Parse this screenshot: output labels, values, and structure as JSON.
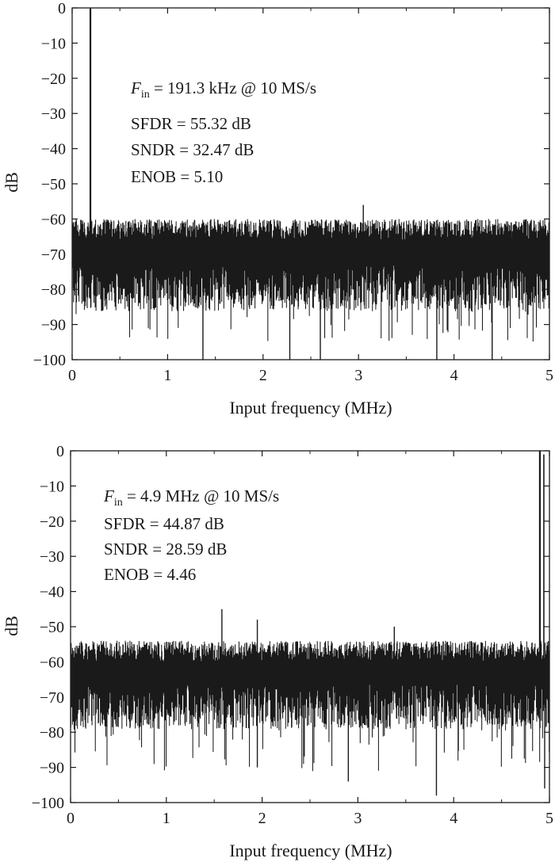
{
  "chart_data": [
    {
      "type": "line",
      "xlabel": "Input frequency (MHz)",
      "ylabel": "dB",
      "xlim": [
        0,
        5
      ],
      "ylim": [
        -100,
        0
      ],
      "xticks": [
        "0",
        "1",
        "2",
        "3",
        "4",
        "5"
      ],
      "yticks": [
        "0",
        "-10",
        "-20",
        "-30",
        "-40",
        "-50",
        "-60",
        "-70",
        "-80",
        "-90",
        "-100"
      ],
      "grid": false,
      "annotations": {
        "fin_symbol": "F",
        "fin_subscript": "in",
        "fin_rest": " = 191.3 kHz @ 10 MS/s",
        "sfdr": "SFDR = 55.32 dB",
        "sndr": "SNDR = 32.47 dB",
        "enob": "ENOB = 5.10"
      },
      "signal_peak": {
        "x": 0.1913,
        "y": 0
      },
      "noise_floor": {
        "mean": -71,
        "typical_range": [
          -83,
          -60
        ],
        "deepest": -100
      },
      "spurs": [
        {
          "x": 3.05,
          "y": -56
        },
        {
          "x": 1.7,
          "y": -61
        },
        {
          "x": 4.6,
          "y": -61
        }
      ],
      "deep_nulls": [
        {
          "x": 1.37,
          "y": -100
        },
        {
          "x": 2.28,
          "y": -100
        },
        {
          "x": 2.6,
          "y": -100
        },
        {
          "x": 3.82,
          "y": -100
        },
        {
          "x": 4.4,
          "y": -100
        }
      ]
    },
    {
      "type": "line",
      "xlabel": "Input frequency (MHz)",
      "ylabel": "dB",
      "xlim": [
        0,
        5
      ],
      "ylim": [
        -100,
        0
      ],
      "xticks": [
        "0",
        "1",
        "2",
        "3",
        "4",
        "5"
      ],
      "yticks": [
        "0",
        "-10",
        "-20",
        "-30",
        "-40",
        "-50",
        "-60",
        "-70",
        "-80",
        "-90",
        "-100"
      ],
      "grid": false,
      "annotations": {
        "fin_symbol": "F",
        "fin_subscript": "in",
        "fin_rest": " = 4.9 MHz @ 10 MS/s",
        "sfdr": "SFDR = 44.87 dB",
        "sndr": "SNDR = 28.59 dB",
        "enob": "ENOB = 4.46"
      },
      "signal_peak": {
        "x": 4.9,
        "y": 0
      },
      "noise_floor": {
        "mean": -64,
        "typical_range": [
          -76,
          -54
        ],
        "deepest": -98
      },
      "spurs": [
        {
          "x": 1.58,
          "y": -45
        },
        {
          "x": 1.95,
          "y": -48
        },
        {
          "x": 3.38,
          "y": -50
        }
      ],
      "deep_nulls": [
        {
          "x": 1.95,
          "y": -90
        },
        {
          "x": 2.9,
          "y": -94
        },
        {
          "x": 3.82,
          "y": -98
        },
        {
          "x": 4.95,
          "y": -96
        }
      ]
    }
  ]
}
